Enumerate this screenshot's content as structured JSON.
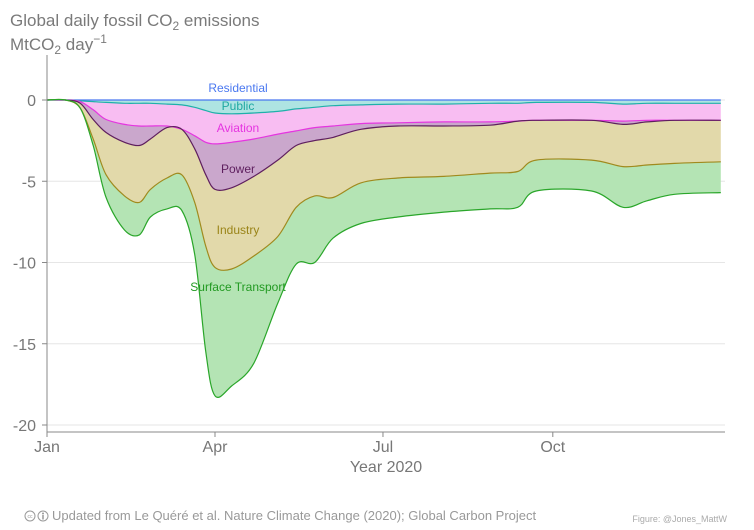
{
  "chart_data": {
    "type": "area",
    "stacked": true,
    "title": "Global daily fossil CO2 emissions",
    "ylabel": "MtCO2 day-1",
    "xlabel": "Year 2020",
    "ylim": [
      -20,
      0
    ],
    "yticks": [
      0,
      -5,
      -10,
      -15,
      -20
    ],
    "ytick_labels": [
      "0",
      "-5",
      "-10",
      "-15",
      "-20"
    ],
    "xticks": [
      "2020-01-01",
      "2020-04-01",
      "2020-07-01",
      "2020-10-01"
    ],
    "xtick_labels": [
      "Jan",
      "Apr",
      "Jul",
      "Oct"
    ],
    "grid": "horizontal",
    "x": [
      "2020-01-01",
      "2020-01-11",
      "2020-01-19",
      "2020-01-26",
      "2020-02-02",
      "2020-02-12",
      "2020-02-20",
      "2020-02-26",
      "2020-03-06",
      "2020-03-14",
      "2020-03-21",
      "2020-03-27",
      "2020-04-01",
      "2020-04-10",
      "2020-04-22",
      "2020-05-05",
      "2020-05-15",
      "2020-05-25",
      "2020-06-04",
      "2020-06-19",
      "2020-07-09",
      "2020-08-03",
      "2020-08-28",
      "2020-09-12",
      "2020-09-22",
      "2020-10-22",
      "2020-11-08",
      "2020-11-21",
      "2020-12-06",
      "2020-12-31"
    ],
    "series": [
      {
        "name": "Residential",
        "color": "#4a78f0",
        "fill": "#c9d6fb",
        "values": [
          0,
          0,
          0,
          0,
          0,
          0,
          0,
          0,
          0,
          0,
          0,
          0,
          0,
          0,
          0,
          0,
          0,
          0,
          0,
          0,
          0,
          0,
          0,
          0,
          0,
          0,
          0,
          0,
          0,
          0
        ]
      },
      {
        "name": "Public",
        "color": "#1fb0aa",
        "fill": "#aee4e2",
        "values": [
          0,
          0,
          -0.05,
          -0.1,
          -0.15,
          -0.2,
          -0.2,
          -0.2,
          -0.25,
          -0.3,
          -0.45,
          -0.65,
          -0.8,
          -0.85,
          -0.8,
          -0.7,
          -0.55,
          -0.45,
          -0.35,
          -0.3,
          -0.25,
          -0.25,
          -0.2,
          -0.2,
          -0.15,
          -0.15,
          -0.25,
          -0.2,
          -0.2,
          -0.2
        ]
      },
      {
        "name": "Aviation",
        "color": "#e535e0",
        "fill": "#f8bdf2",
        "values": [
          0,
          0,
          -0.05,
          -0.5,
          -1.05,
          -1.3,
          -1.4,
          -1.4,
          -1.35,
          -1.5,
          -1.75,
          -1.95,
          -1.9,
          -1.75,
          -1.6,
          -1.4,
          -1.35,
          -1.25,
          -1.25,
          -1.15,
          -1.15,
          -1.1,
          -1.15,
          -1.1,
          -1.1,
          -1.1,
          -1.05,
          -1.05,
          -1.05,
          -1.05
        ]
      },
      {
        "name": "Power",
        "color": "#5e1f5e",
        "fill": "#caa7cc",
        "values": [
          0,
          0,
          -0.1,
          -0.6,
          -0.8,
          -1.1,
          -1.2,
          -0.8,
          -0.1,
          0,
          -0.8,
          -2.0,
          -2.8,
          -2.8,
          -2.3,
          -1.6,
          -0.9,
          -0.8,
          -0.7,
          -0.35,
          -0.2,
          -0.25,
          -0.2,
          0,
          0,
          0,
          -0.2,
          -0.1,
          0,
          0
        ]
      },
      {
        "name": "Industry",
        "color": "#a08a1e",
        "fill": "#e2d9aa",
        "values": [
          0,
          0,
          -0.3,
          -1.2,
          -2.6,
          -3.3,
          -3.5,
          -3.1,
          -3.1,
          -2.8,
          -3.3,
          -4.4,
          -4.8,
          -5.0,
          -4.9,
          -4.7,
          -3.8,
          -3.4,
          -3.7,
          -3.3,
          -3.2,
          -3.1,
          -2.95,
          -3.1,
          -2.45,
          -2.45,
          -2.6,
          -2.65,
          -2.65,
          -2.55
        ]
      },
      {
        "name": "Surface Transport",
        "color": "#2aa62a",
        "fill": "#b4e4b4",
        "values": [
          0,
          0,
          0,
          -0.4,
          -1.4,
          -2.1,
          -2.0,
          -1.7,
          -1.9,
          -2.2,
          -3.2,
          -6.5,
          -7.9,
          -7.2,
          -6.6,
          -4.1,
          -3.5,
          -4.1,
          -2.5,
          -2.5,
          -2.4,
          -2.2,
          -2.2,
          -2.2,
          -1.9,
          -1.9,
          -2.5,
          -2.2,
          -1.9,
          -1.9
        ]
      }
    ]
  },
  "footer": {
    "license_icons": "cc-by-icons",
    "source": "Updated from Le Quéré et al. Nature Climate Change (2020); Global Carbon Project",
    "credit": "Figure: @Jones_MattW"
  }
}
